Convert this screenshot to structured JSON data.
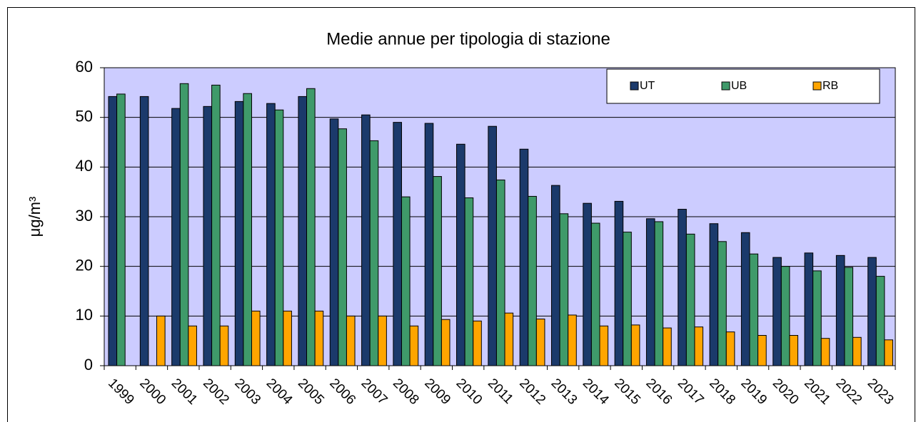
{
  "chart_data": {
    "type": "bar",
    "title": "Medie annue per tipologia di stazione",
    "y_label": "μg/m³",
    "categories": [
      "1999",
      "2000",
      "2001",
      "2002",
      "2003",
      "2004",
      "2005",
      "2006",
      "2007",
      "2008",
      "2009",
      "2010",
      "2011",
      "2012",
      "2013",
      "2014",
      "2015",
      "2016",
      "2017",
      "2018",
      "2019",
      "2020",
      "2021",
      "2022",
      "2023"
    ],
    "series": [
      {
        "name": "UT",
        "color": "#1b3a6b",
        "values": [
          54.2,
          54.2,
          51.8,
          52.2,
          53.2,
          52.8,
          54.2,
          49.7,
          50.5,
          49.0,
          48.8,
          44.6,
          48.2,
          43.6,
          36.3,
          32.7,
          33.1,
          29.6,
          31.5,
          28.6,
          26.8,
          21.8,
          22.7,
          22.2,
          21.8
        ]
      },
      {
        "name": "UB",
        "color": "#3f9a6a",
        "values": [
          54.7,
          null,
          56.8,
          56.5,
          54.8,
          51.5,
          55.8,
          47.7,
          45.3,
          34.0,
          38.1,
          33.8,
          37.4,
          34.1,
          30.6,
          28.7,
          26.9,
          29.0,
          26.5,
          25.0,
          22.5,
          20.0,
          19.1,
          19.8,
          18.0
        ]
      },
      {
        "name": "RB",
        "color": "#ffa500",
        "values": [
          null,
          10.0,
          8.0,
          8.0,
          11.0,
          11.0,
          11.0,
          10.0,
          10.0,
          8.0,
          9.3,
          9.0,
          10.6,
          9.4,
          10.2,
          8.0,
          8.2,
          7.6,
          7.8,
          6.8,
          6.1,
          6.1,
          5.5,
          5.7,
          5.2
        ]
      }
    ],
    "ylim": [
      0,
      60
    ],
    "yticks": [
      0,
      10,
      20,
      30,
      40,
      50,
      60
    ],
    "grid": true,
    "plot_background": "#ccccff",
    "legend": "top-right"
  }
}
